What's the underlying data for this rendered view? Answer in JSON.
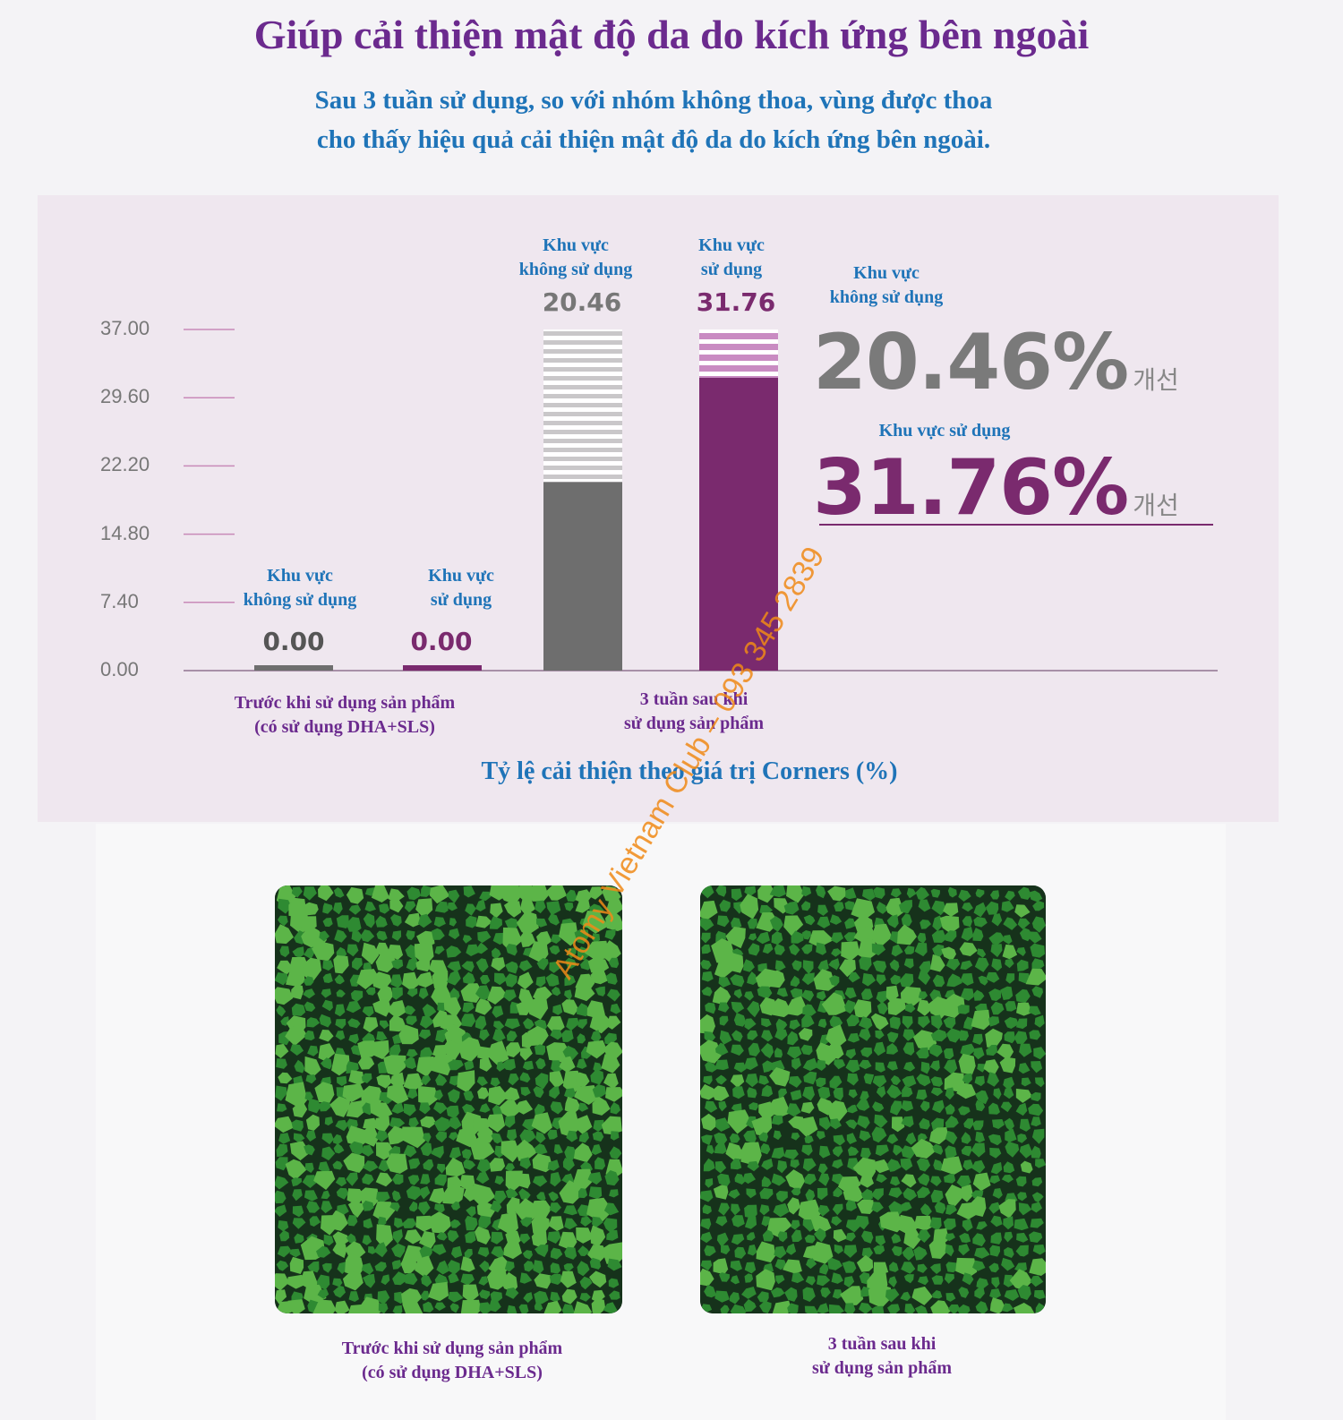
{
  "header": {
    "title": "Giúp cải thiện mật độ da do kích ứng bên ngoài",
    "subtitle_line1": "Sau 3 tuần sử dụng, so với nhóm không thoa, vùng được thoa",
    "subtitle_line2": "cho thấy hiệu quả cải thiện mật độ da do kích ứng bên ngoài."
  },
  "chart_data": {
    "type": "bar",
    "ylim": [
      0,
      37
    ],
    "yticks": [
      "37.00",
      "29.60",
      "22.20",
      "14.80",
      "7.40",
      "0.00"
    ],
    "categories": [
      "Trước khi sử dụng sản phẩm (có sử dụng DHA+SLS)",
      "3 tuần sau khi sử dụng sản phẩm"
    ],
    "series": [
      {
        "name": "Khu vực không sử dụng",
        "values": [
          0.0,
          20.46
        ],
        "labels": [
          "0.00",
          "20.46"
        ],
        "color": "#6e6e6e"
      },
      {
        "name": "Khu vực sử dụng",
        "values": [
          0.0,
          31.76
        ],
        "labels": [
          "0.00",
          "31.76"
        ],
        "color": "#7a2a6e"
      }
    ],
    "bar_labels": {
      "before_unused": [
        "Khu vực",
        "không sử dụng"
      ],
      "before_used": [
        "Khu vực",
        "sử dụng"
      ],
      "after_unused": [
        "Khu vực",
        "không sử dụng"
      ],
      "after_used": [
        "Khu vực",
        "sử dụng"
      ]
    },
    "category_labels": {
      "before": [
        "Trước khi sử dụng sản phẩm",
        "(có sử dụng DHA+SLS)"
      ],
      "after": [
        "3 tuần sau khi",
        "sử dụng sản phẩm"
      ]
    },
    "xlabel": "Tỷ lệ cải thiện theo giá trị Corners (%)",
    "ylabel": ""
  },
  "summary": {
    "unused_label": [
      "Khu vực",
      "không sử dụng"
    ],
    "unused_value": "20.46%",
    "used_label": "Khu vực sử dụng",
    "used_value": "31.76%",
    "korean": "개선"
  },
  "colors": {
    "title": "#6b2a8e",
    "blue": "#1f74b8",
    "gray": "#6e6e6e",
    "purple": "#7a2a6e",
    "green_dark": "#173a1e",
    "green_light": "#3f9a35"
  },
  "photos": {
    "before_caption": [
      "Trước khi sử dụng sản phẩm",
      "(có sử dụng DHA+SLS)"
    ],
    "after_caption": [
      "3 tuần sau khi",
      "sử dụng sản phẩm"
    ]
  },
  "watermark": "Atomy Vietnam Club – 093 345 2839"
}
